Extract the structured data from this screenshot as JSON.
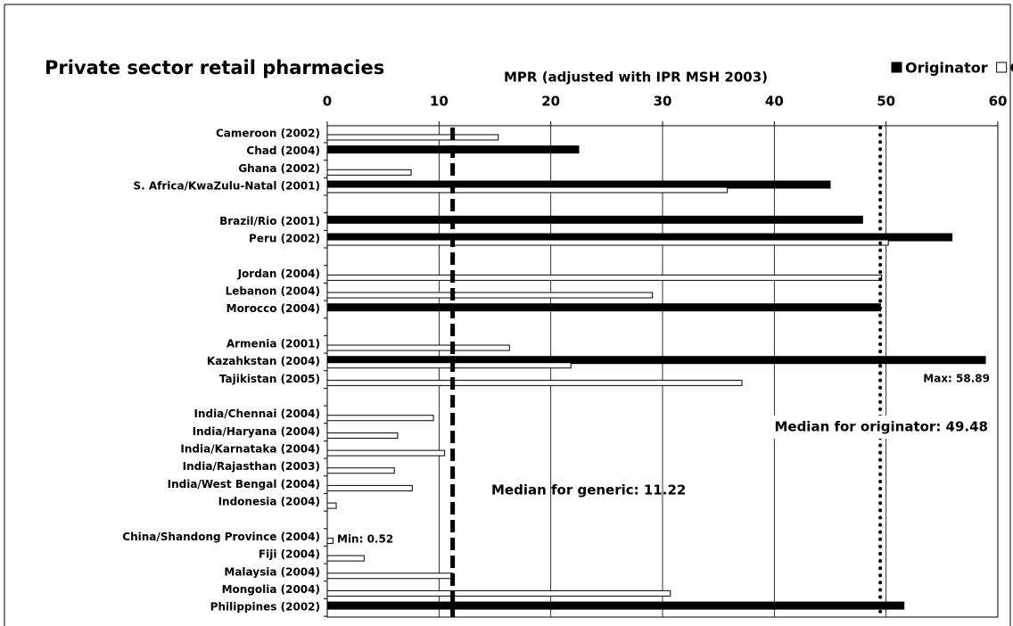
{
  "chart_data": {
    "type": "barh",
    "title": "Private sector retail pharmacies",
    "x_label": "MPR (adjusted with IPR MSH 2003)",
    "categories": [
      "Cameroon (2002)",
      "Chad (2004)",
      "Ghana (2002)",
      "S. Africa/KwaZulu-Natal (2001)",
      null,
      "Brazil/Rio (2001)",
      "Peru (2002)",
      null,
      "Jordan (2004)",
      "Lebanon (2004)",
      "Morocco (2004)",
      null,
      "Armenia (2001)",
      "Kazahkstan (2004)",
      "Tajikistan (2005)",
      null,
      "India/Chennai (2004)",
      "India/Haryana (2004)",
      "India/Karnataka (2004)",
      "India/Rajasthan (2003)",
      "India/West Bengal (2004)",
      "Indonesia (2004)",
      null,
      "China/Shandong Province (2004)",
      "Fiji (2004)",
      "Malaysia (2004)",
      "Mongolia (2004)",
      "Philippines (2002)"
    ],
    "series": [
      {
        "name": "Originator",
        "color": "#000000",
        "values": [
          null,
          22.5,
          null,
          45.0,
          null,
          47.9,
          55.9,
          null,
          null,
          null,
          49.5,
          null,
          null,
          58.89,
          null,
          null,
          null,
          null,
          null,
          null,
          null,
          null,
          null,
          null,
          null,
          null,
          null,
          51.6
        ]
      },
      {
        "name": "Generic",
        "color": "#ffffff",
        "values": [
          15.3,
          null,
          7.5,
          35.8,
          null,
          null,
          50.2,
          null,
          49.6,
          29.1,
          null,
          null,
          16.3,
          21.8,
          37.1,
          null,
          9.5,
          6.3,
          10.5,
          6.0,
          7.6,
          0.8,
          null,
          0.52,
          3.3,
          11.2,
          30.7,
          null
        ]
      }
    ],
    "xlim": [
      0,
      60
    ],
    "xticks": [
      0,
      10,
      20,
      30,
      40,
      50,
      60
    ],
    "grid": true,
    "legend": "top-right",
    "reference_lines": [
      {
        "value": 11.22,
        "label": "Median for generic: 11.22",
        "style": "dashed"
      },
      {
        "value": 49.48,
        "label": "Median for originator: 49.48",
        "style": "dotted"
      }
    ],
    "annotations": [
      "Max: 58.89",
      "Min: 0.52"
    ]
  }
}
